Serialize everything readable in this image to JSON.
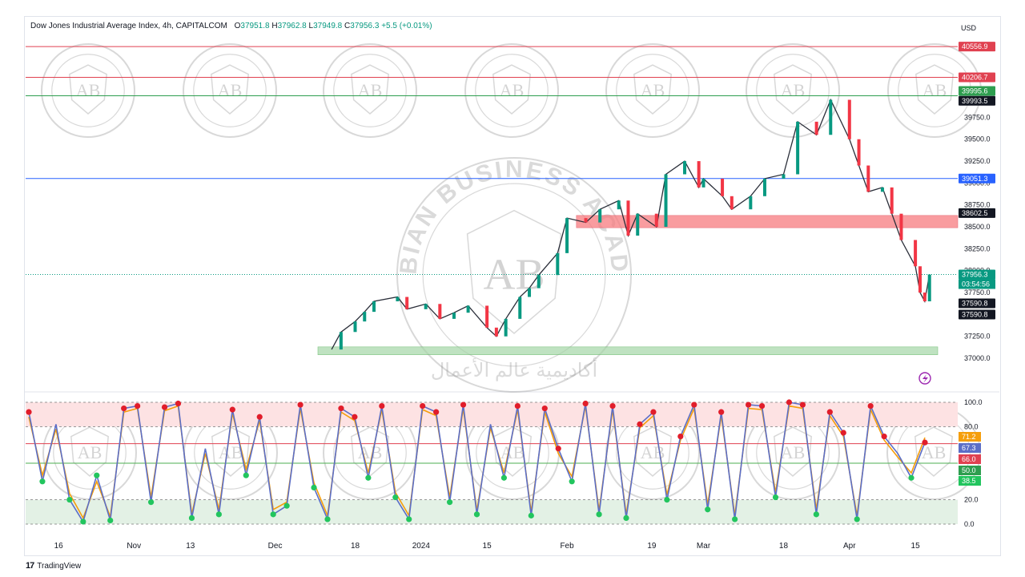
{
  "header": {
    "symbol": "Dow Jones Industrial Average Index, 4h, CAPITALCOM",
    "ohlc": {
      "o": "37951.8",
      "h": "37962.8",
      "l": "37949.8",
      "c": "37956.3",
      "chg": "+5.5 (+0.01%)"
    },
    "currency": "USD"
  },
  "footer": {
    "brand": "TradingView",
    "logo": "tradingview-logo-icon"
  },
  "watermark": {
    "text_top": "ARABIAN BUSINESS ACADEMY",
    "monogram": "AB",
    "text_arabic": "أكاديمية عالم الأعمال"
  },
  "colors": {
    "up": "#089981",
    "down": "#f23645",
    "price_line": "#089981",
    "red_line": "#e04150",
    "green_line": "#2e9e4f",
    "blue_line": "#2962ff",
    "resist_zone": "#f77c80",
    "support_zone": "#a5d6a7",
    "overbought_fill": "#fde2e3",
    "oversold_fill": "#e3f1e5",
    "k_line": "#5b6ec7",
    "d_line": "#f59e0b"
  },
  "chart_data": [
    {
      "type": "line",
      "title": "Dow Jones Industrial Average Index, 4h, CAPITALCOM",
      "ylim": [
        36900,
        40650
      ],
      "y_ticks": [
        "37000.0",
        "37250.0",
        "37500.0",
        "37750.0",
        "38000.0",
        "38250.0",
        "38500.0",
        "38750.0",
        "39000.0",
        "39250.0",
        "39500.0",
        "39750.0"
      ],
      "x_ticks": [
        "16",
        "Nov",
        "13",
        "Dec",
        "18",
        "2024",
        "15",
        "Feb",
        "19",
        "Mar",
        "18",
        "Apr",
        "15"
      ],
      "x_tick_dates": [
        "2023-10-16",
        "2023-11-01",
        "2023-11-13",
        "2023-12-01",
        "2023-12-18",
        "2024-01-01",
        "2024-01-15",
        "2024-02-01",
        "2024-02-19",
        "2024-03-01",
        "2024-03-18",
        "2024-04-01",
        "2024-04-15"
      ],
      "series": [
        {
          "x": [
            "2023-12-13",
            "2023-12-15",
            "2023-12-18",
            "2023-12-20",
            "2023-12-22",
            "2023-12-27",
            "2023-12-29",
            "2024-01-02",
            "2024-01-05",
            "2024-01-08",
            "2024-01-11",
            "2024-01-15",
            "2024-01-17",
            "2024-01-19",
            "2024-01-22",
            "2024-01-24",
            "2024-01-26",
            "2024-01-30",
            "2024-02-01",
            "2024-02-05",
            "2024-02-08",
            "2024-02-12",
            "2024-02-14",
            "2024-02-16",
            "2024-02-20",
            "2024-02-22",
            "2024-02-26",
            "2024-02-29",
            "2024-03-01",
            "2024-03-05",
            "2024-03-07",
            "2024-03-11",
            "2024-03-14",
            "2024-03-18",
            "2024-03-21",
            "2024-03-25",
            "2024-03-28",
            "2024-04-01",
            "2024-04-03",
            "2024-04-05",
            "2024-04-08",
            "2024-04-10",
            "2024-04-12",
            "2024-04-15",
            "2024-04-16",
            "2024-04-17",
            "2024-04-18"
          ],
          "values": [
            37100,
            37300,
            37420,
            37530,
            37650,
            37700,
            37560,
            37620,
            37450,
            37520,
            37600,
            37350,
            37250,
            37450,
            37700,
            37800,
            37950,
            38200,
            38600,
            38550,
            38700,
            38800,
            38400,
            38650,
            38500,
            39100,
            39250,
            38950,
            39050,
            38850,
            38700,
            38850,
            39050,
            39100,
            39700,
            39550,
            39950,
            39500,
            39200,
            38900,
            38950,
            38650,
            38350,
            38050,
            37750,
            37650,
            37956
          ]
        }
      ],
      "levels": [
        {
          "value": "40556.9",
          "label": "40556.9",
          "color": "#e04150"
        },
        {
          "value": "40206.7",
          "label": "40206.7",
          "color": "#e04150"
        },
        {
          "value": "39995.6",
          "label": "39995.6",
          "color": "#2e9e4f"
        },
        {
          "value": "39993.5",
          "label": "39993.5",
          "color": "#131722"
        },
        {
          "value": "39051.3",
          "label": "39051.3",
          "color": "#2962ff"
        },
        {
          "value": "38602.5",
          "label": "38602.5",
          "color": "#131722"
        },
        {
          "value": "37956.3",
          "label": "37956.3",
          "color": "#089981"
        },
        {
          "value": "37590.8",
          "label": "37590.8",
          "color": "#131722"
        },
        {
          "value": "37590.8",
          "label": "37590.8",
          "color": "#131722"
        }
      ],
      "countdown": "03:54:56",
      "zones": [
        {
          "from": 38490,
          "to": 38630,
          "color": "#f77c80"
        },
        {
          "from": 37040,
          "to": 37130,
          "color": "#a5d6a7"
        }
      ]
    },
    {
      "type": "line",
      "ylim": [
        0,
        100
      ],
      "y_ticks": [
        "0.0",
        "20.0",
        "80.0",
        "100.0"
      ],
      "series": [
        {
          "name": "",
          "values": [
            92,
            35,
            82,
            20,
            2,
            40,
            3,
            95,
            97,
            18,
            96,
            99,
            5,
            62,
            8,
            94,
            40,
            88,
            8,
            15,
            98,
            30,
            4,
            95,
            88,
            38,
            97,
            22,
            4,
            97,
            92,
            18,
            98,
            8,
            82,
            38,
            97,
            7,
            95,
            62,
            35,
            99,
            8,
            97,
            5,
            82,
            92,
            20,
            72,
            98,
            12,
            92,
            4,
            98,
            97,
            22,
            100,
            98,
            8,
            92,
            75,
            4,
            97,
            72,
            58,
            38,
            67
          ]
        },
        {
          "name": "",
          "values": [
            88,
            40,
            78,
            25,
            5,
            35,
            6,
            92,
            95,
            22,
            93,
            97,
            8,
            58,
            12,
            91,
            45,
            85,
            12,
            18,
            95,
            34,
            7,
            92,
            85,
            42,
            94,
            26,
            7,
            94,
            89,
            22,
            95,
            11,
            79,
            42,
            94,
            10,
            92,
            58,
            39,
            97,
            11,
            94,
            8,
            79,
            89,
            24,
            69,
            95,
            16,
            89,
            7,
            95,
            94,
            26,
            97,
            95,
            12,
            89,
            72,
            7,
            94,
            69,
            55,
            42,
            71
          ]
        }
      ],
      "levels": [
        {
          "value": "71.2",
          "label": "71.2",
          "color": "#f59e0b"
        },
        {
          "value": "67.3",
          "label": "67.3",
          "color": "#5b6ec7"
        },
        {
          "value": "66.0",
          "label": "66.0",
          "color": "#e04150"
        },
        {
          "value": "50.0",
          "label": "50.0",
          "color": "#2e9e4f"
        },
        {
          "value": "38.5",
          "label": "38.5",
          "color": "#22c55e"
        }
      ]
    }
  ]
}
